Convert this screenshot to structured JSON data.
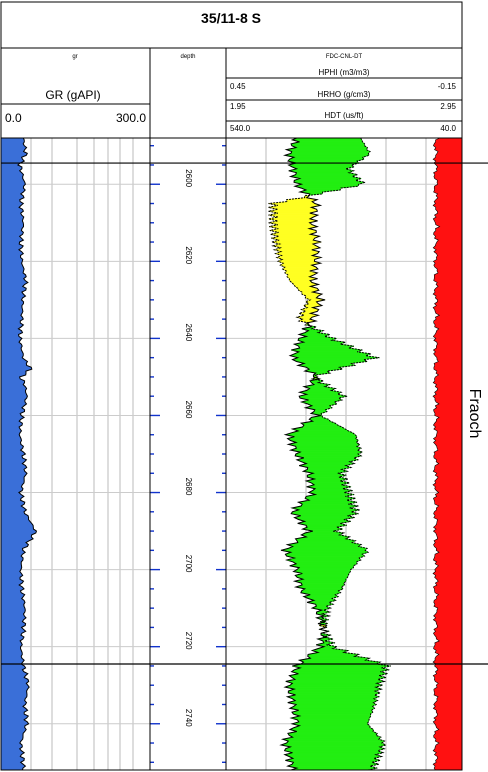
{
  "well_title": "35/11-8 S",
  "tracks": {
    "gr": {
      "title": "gr",
      "curve_name": "GR (gAPI)",
      "scale_left": "0.0",
      "scale_right": "300.0",
      "fill_color": "#3a6fd8"
    },
    "depth": {
      "title": "depth"
    },
    "density_neutron": {
      "title": "FDC-CNL-DT",
      "curves": [
        {
          "name": "HPHI (m3/m3)",
          "left": "0.45",
          "right": "-0.15"
        },
        {
          "name": "HRHO (g/cm3)",
          "left": "1.95",
          "right": "2.95"
        },
        {
          "name": "HDT (us/ft)",
          "left": "540.0",
          "right": "40.0"
        }
      ],
      "crossover_fill_color": "#ffff22",
      "separation_fill_color": "#22ee11"
    },
    "right_fill_color": "#ff1111"
  },
  "zone_label": "Fraoch",
  "chart_data": {
    "type": "area",
    "depth_range": [
      2588,
      2752
    ],
    "depth_labels": [
      2600,
      2620,
      2640,
      2660,
      2680,
      2700,
      2720,
      2740
    ],
    "zone": {
      "name": "Fraoch",
      "top": 2594.5,
      "base": 2724.5
    },
    "series": [
      {
        "name": "GR (gAPI)",
        "range": [
          0.0,
          300.0
        ],
        "depth": [
          2588,
          2592,
          2595,
          2600,
          2605,
          2610,
          2615,
          2620,
          2625,
          2630,
          2635,
          2640,
          2645,
          2648,
          2650,
          2652,
          2655,
          2660,
          2665,
          2670,
          2675,
          2680,
          2685,
          2690,
          2695,
          2700,
          2705,
          2710,
          2715,
          2720,
          2725,
          2730,
          2735,
          2740,
          2745,
          2752
        ],
        "values": [
          45,
          50,
          38,
          48,
          40,
          45,
          40,
          42,
          50,
          44,
          42,
          38,
          45,
          60,
          40,
          48,
          52,
          42,
          38,
          45,
          50,
          40,
          48,
          70,
          45,
          40,
          42,
          48,
          46,
          40,
          45,
          55,
          48,
          52,
          40,
          46
        ]
      },
      {
        "name": "HPHI (m3/m3)",
        "range": [
          0.45,
          -0.15
        ],
        "depth": [
          2588,
          2592,
          2596,
          2600,
          2605,
          2610,
          2615,
          2620,
          2625,
          2630,
          2635,
          2640,
          2645,
          2650,
          2655,
          2660,
          2665,
          2670,
          2675,
          2680,
          2685,
          2690,
          2695,
          2700,
          2705,
          2710,
          2715,
          2720,
          2725,
          2730,
          2735,
          2740,
          2745,
          2752
        ],
        "values": [
          0.27,
          0.29,
          0.28,
          0.27,
          0.22,
          0.23,
          0.22,
          0.22,
          0.23,
          0.21,
          0.23,
          0.26,
          0.28,
          0.22,
          0.26,
          0.22,
          0.29,
          0.27,
          0.24,
          0.23,
          0.28,
          0.24,
          0.3,
          0.27,
          0.26,
          0.22,
          0.2,
          0.21,
          0.27,
          0.29,
          0.28,
          0.27,
          0.3,
          0.28
        ]
      },
      {
        "name": "HRHO (g/cm3)",
        "range": [
          1.95,
          2.95
        ],
        "depth": [
          2588,
          2592,
          2596,
          2600,
          2605,
          2610,
          2615,
          2620,
          2625,
          2630,
          2635,
          2640,
          2645,
          2650,
          2655,
          2660,
          2665,
          2670,
          2675,
          2680,
          2685,
          2690,
          2695,
          2700,
          2705,
          2710,
          2715,
          2720,
          2725,
          2730,
          2735,
          2740,
          2745,
          2752
        ],
        "values": [
          2.52,
          2.56,
          2.47,
          2.53,
          2.15,
          2.15,
          2.16,
          2.18,
          2.22,
          2.3,
          2.26,
          2.4,
          2.58,
          2.32,
          2.45,
          2.35,
          2.5,
          2.52,
          2.44,
          2.47,
          2.5,
          2.42,
          2.55,
          2.48,
          2.44,
          2.38,
          2.36,
          2.4,
          2.63,
          2.6,
          2.58,
          2.55,
          2.62,
          2.57
        ]
      }
    ]
  }
}
